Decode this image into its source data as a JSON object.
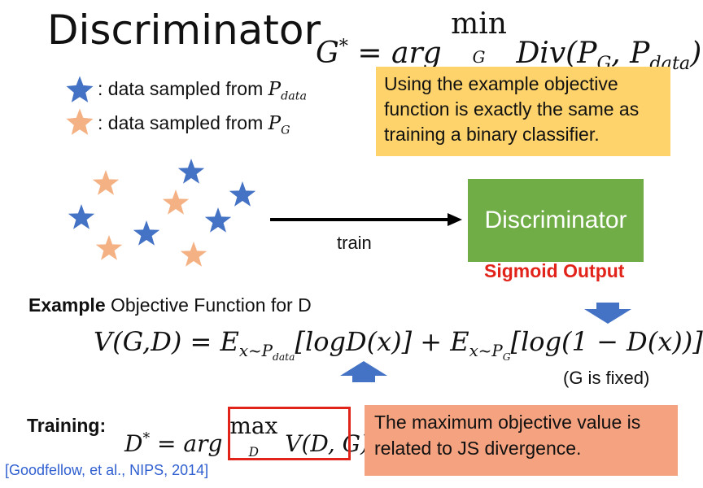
{
  "title": "Discriminator",
  "top_equation": "G* = arg min_G Div(P_G, P_data)",
  "legend": {
    "blue_label": ": data sampled from P_data",
    "orange_label": ": data sampled from P_G",
    "blue_color": "#4472c4",
    "orange_color": "#f4b183"
  },
  "note": "Using the example objective function is exactly the same as training a binary classifier.",
  "train_label": "train",
  "discriminator_label": "Discriminator",
  "sigmoid_label": "Sigmoid Output",
  "example_bold": "Example",
  "example_rest": " Objective Function for D",
  "v_equation": "V(G,D) = E_{x~P_data}[logD(x)] + E_{x~P_G}[log(1 − D(x))]",
  "g_fixed": "(G is fixed)",
  "training_label": "Training:",
  "d_equation": "D* = arg max_D V(D,G)",
  "js_note": "The maximum objective value is related to JS divergence.",
  "citation": "[Goodfellow, et al., NIPS, 2014]"
}
